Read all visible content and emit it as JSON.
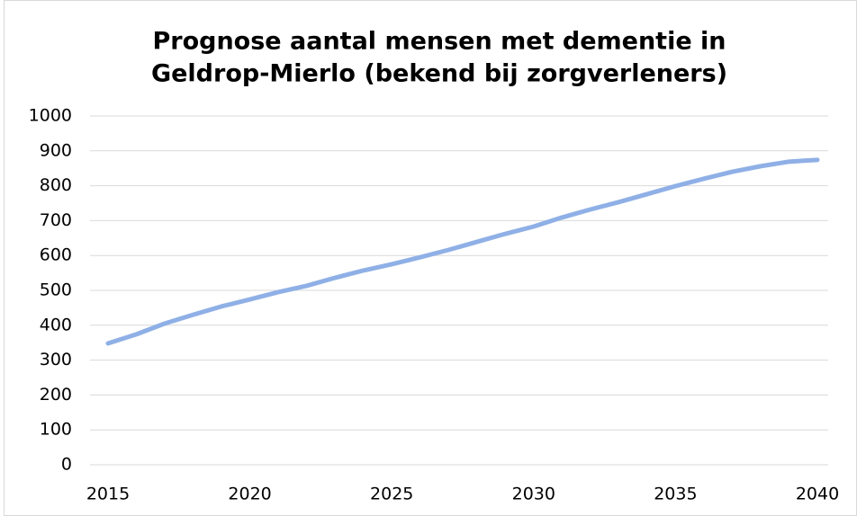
{
  "chart_data": {
    "type": "line",
    "title": [
      "Prognose aantal mensen met dementie in",
      "Geldrop-Mierlo (bekend bij zorgverleners)"
    ],
    "x": [
      2015,
      2016,
      2017,
      2018,
      2019,
      2020,
      2021,
      2022,
      2023,
      2024,
      2025,
      2026,
      2027,
      2028,
      2029,
      2030,
      2031,
      2032,
      2033,
      2034,
      2035,
      2036,
      2037,
      2038,
      2039,
      2040
    ],
    "series": [
      {
        "color": "#8fb0e6",
        "values": [
          348,
          374,
          405,
          430,
          454,
          474,
          495,
          513,
          536,
          557,
          575,
          595,
          616,
          639,
          662,
          683,
          709,
          732,
          753,
          776,
          799,
          820,
          840,
          856,
          869,
          874
        ]
      }
    ],
    "xlim": [
      2015,
      2040
    ],
    "xticks": [
      2015,
      2020,
      2025,
      2030,
      2035,
      2040
    ],
    "ylim": [
      0,
      1000
    ],
    "yticks": [
      0,
      100,
      200,
      300,
      400,
      500,
      600,
      700,
      800,
      900,
      1000
    ],
    "grid": true
  }
}
